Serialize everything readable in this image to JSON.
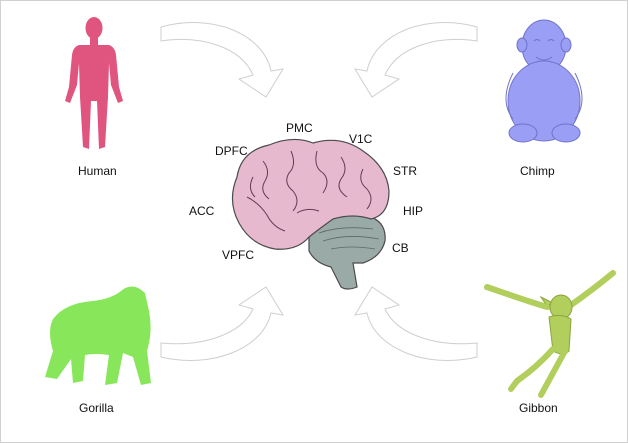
{
  "species": {
    "human": "Human",
    "chimp": "Chimp",
    "gorilla": "Gorilla",
    "gibbon": "Gibbon"
  },
  "regions": {
    "pmc": "PMC",
    "v1c": "V1C",
    "dpfc": "DPFC",
    "str": "STR",
    "hip": "HIP",
    "acc": "ACC",
    "cb": "CB",
    "vpfc": "VPFC"
  },
  "colors": {
    "human": "#e0557f",
    "chimp": "#9a9ef4",
    "gorilla": "#88e65a",
    "gibbon": "#b2cf5e",
    "cerebrum": "#e7b9cf",
    "cerebellum": "#9aaaa6",
    "arrow_outline": "#cfcfcf"
  }
}
